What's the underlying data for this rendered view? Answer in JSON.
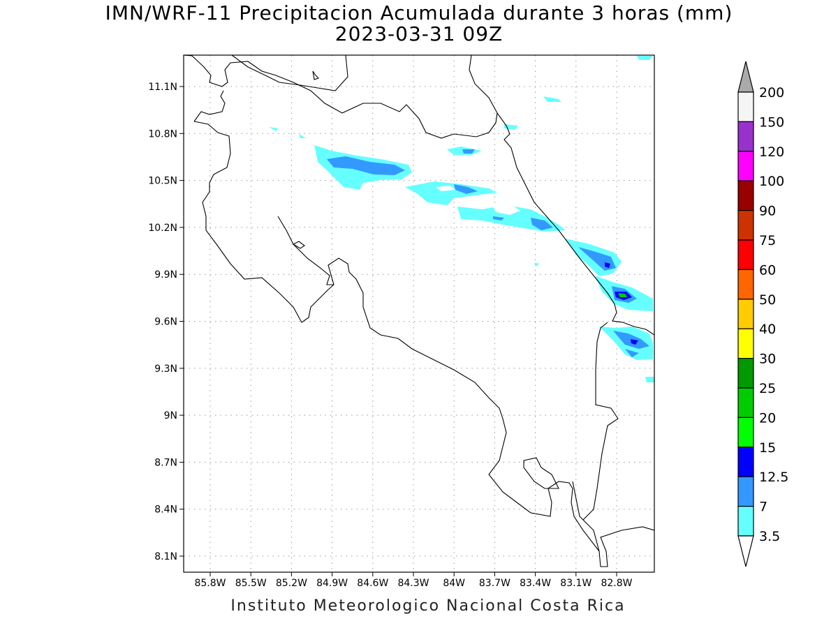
{
  "title": "IMN/WRF-11 Precipitacion Acumulada durante 3 horas (mm)",
  "subtitle": "2023-03-31 09Z",
  "credit": "Instituto Meteorologico Nacional Costa Rica",
  "map": {
    "lon_ticks": [
      "85.8W",
      "85.5W",
      "85.2W",
      "84.9W",
      "84.6W",
      "84.3W",
      "84W",
      "83.7W",
      "83.4W",
      "83.1W",
      "82.8W"
    ],
    "lat_ticks": [
      "11.1N",
      "10.8N",
      "10.5N",
      "10.2N",
      "9.9N",
      "9.6N",
      "9.3N",
      "9N",
      "8.7N",
      "8.4N",
      "8.1N"
    ]
  },
  "legend": {
    "labels": [
      "200",
      "150",
      "120",
      "100",
      "90",
      "75",
      "60",
      "50",
      "40",
      "30",
      "25",
      "20",
      "15",
      "12.5",
      "7",
      "3.5"
    ],
    "colors": [
      "#f5f5f5",
      "#9932cc",
      "#ff00ff",
      "#990000",
      "#cc3300",
      "#ff0000",
      "#ff6600",
      "#ffcc00",
      "#ffff00",
      "#009900",
      "#00cc00",
      "#00ff00",
      "#0000ff",
      "#3399ff",
      "#66ffff"
    ],
    "top_arrow_color": "#aaaaaa",
    "bottom_arrow_color": "#ffffff"
  },
  "precip_colors": {
    "light": "#66ffff",
    "moderate": "#3399ff",
    "heavy": "#0000ff",
    "peak": "#00cc00"
  }
}
